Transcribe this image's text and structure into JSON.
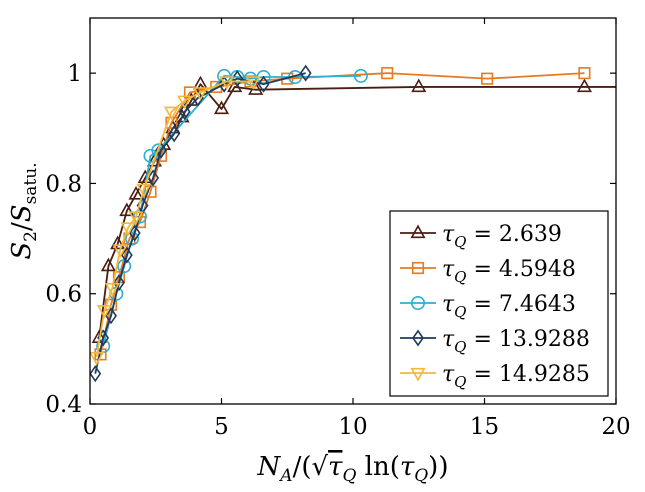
{
  "chart_data": {
    "type": "line",
    "title": "",
    "xlabel": "N_A/(√τ_Q ln(τ_Q))",
    "ylabel": "S_2/S_satu.",
    "xlim": [
      0,
      20
    ],
    "ylim": [
      0.4,
      1.1
    ],
    "x_ticks": [
      0,
      5,
      10,
      15,
      20
    ],
    "y_ticks": [
      0.4,
      0.6,
      0.8,
      1
    ],
    "x_tick_labels": [
      "0",
      "5",
      "10",
      "15",
      "20"
    ],
    "y_tick_labels": [
      "0.4",
      "0.6",
      "0.8",
      "1"
    ],
    "legend_position": "bottom-right",
    "series": [
      {
        "name": "τQ = 2.639",
        "label_prefix": "τ",
        "label_sub": "Q",
        "label_value": " = 2.639",
        "color": "#4a1e10",
        "marker": "triangle-up",
        "line_extends_to_x": 20,
        "x": [
          0.35,
          0.7,
          1.05,
          1.4,
          1.75,
          2.1,
          2.45,
          2.8,
          3.15,
          3.5,
          3.85,
          4.2,
          5.0,
          5.5,
          6.3,
          12.5,
          18.8
        ],
        "y": [
          0.52,
          0.65,
          0.69,
          0.75,
          0.78,
          0.81,
          0.84,
          0.87,
          0.9,
          0.92,
          0.95,
          0.98,
          0.935,
          0.975,
          0.97,
          0.975,
          0.975
        ]
      },
      {
        "name": "τQ = 4.5948",
        "label_prefix": "τ",
        "label_sub": "Q",
        "label_value": " = 4.5948",
        "color": "#e87a20",
        "marker": "square",
        "x": [
          0.4,
          0.8,
          1.1,
          1.5,
          1.9,
          2.3,
          2.7,
          3.1,
          3.8,
          4.8,
          6.1,
          7.5,
          11.3,
          15.1,
          18.8
        ],
        "y": [
          0.49,
          0.58,
          0.63,
          0.7,
          0.73,
          0.785,
          0.85,
          0.91,
          0.965,
          0.975,
          0.985,
          0.99,
          1.0,
          0.99,
          1.0
        ]
      },
      {
        "name": "τQ = 7.4643",
        "label_prefix": "τ",
        "label_sub": "Q",
        "label_value": " = 7.4643",
        "color": "#2eaed0",
        "marker": "circle",
        "x": [
          0.5,
          1.0,
          1.3,
          1.6,
          1.9,
          2.3,
          2.6,
          5.1,
          5.6,
          6.1,
          6.6,
          7.8,
          10.3
        ],
        "y": [
          0.505,
          0.6,
          0.65,
          0.7,
          0.74,
          0.85,
          0.86,
          0.995,
          0.993,
          0.99,
          0.993,
          0.993,
          0.995
        ]
      },
      {
        "name": "τQ = 13.9288",
        "label_prefix": "τ",
        "label_sub": "Q",
        "label_value": " = 13.9288",
        "color": "#1e3a5f",
        "marker": "diamond",
        "x": [
          0.2,
          0.5,
          0.8,
          1.1,
          1.4,
          1.7,
          2.0,
          2.4,
          2.7,
          3.2,
          3.6,
          4.1,
          5.1,
          5.6,
          6.6,
          8.2
        ],
        "y": [
          0.455,
          0.52,
          0.56,
          0.62,
          0.67,
          0.71,
          0.76,
          0.81,
          0.86,
          0.89,
          0.93,
          0.955,
          0.98,
          0.99,
          0.98,
          1.0
        ]
      },
      {
        "name": "τQ = 14.9285",
        "label_prefix": "τ",
        "label_sub": "Q",
        "label_value": " = 14.9285",
        "color": "#f2b83a",
        "marker": "triangle-down",
        "x": [
          0.25,
          0.55,
          0.85,
          1.15,
          1.45,
          1.75,
          2.05,
          3.1,
          3.6,
          4.2,
          5.2,
          6.2
        ],
        "y": [
          0.485,
          0.57,
          0.61,
          0.68,
          0.72,
          0.74,
          0.79,
          0.93,
          0.95,
          0.965,
          0.985,
          0.985
        ]
      }
    ]
  }
}
